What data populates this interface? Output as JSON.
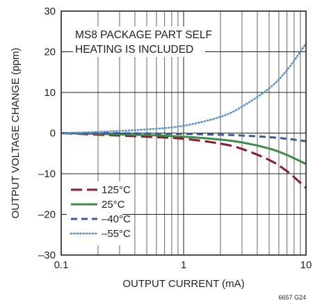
{
  "chart_data": {
    "type": "line",
    "xlabel": "OUTPUT CURRENT (mA)",
    "ylabel": "OUTPUT VOLTAGE CHANGE (ppm)",
    "x_scale": "log",
    "xlim": [
      0.1,
      10
    ],
    "ylim": [
      -30,
      30
    ],
    "x_ticks": [
      {
        "value": 0.1,
        "label": "0.1"
      },
      {
        "value": 1,
        "label": "1"
      },
      {
        "value": 10,
        "label": "10"
      }
    ],
    "y_ticks": [
      {
        "value": 30,
        "label": "30"
      },
      {
        "value": 20,
        "label": "20"
      },
      {
        "value": 10,
        "label": "10"
      },
      {
        "value": 0,
        "label": "0"
      },
      {
        "value": -10,
        "label": "–10"
      },
      {
        "value": -20,
        "label": "–20"
      },
      {
        "value": -30,
        "label": "–30"
      }
    ],
    "grid": true,
    "annotation": [
      "MS8 PACKAGE PART SELF",
      "HEATING IS INCLUDED"
    ],
    "figure_id": "6657 G24",
    "legend_position": "bottom-left",
    "series": [
      {
        "name": "125°C",
        "color": "#8b1a2e",
        "style": "long-dash",
        "x": [
          0.1,
          0.2,
          0.5,
          1,
          2,
          3,
          5,
          7,
          10
        ],
        "y": [
          0,
          -0.4,
          -0.9,
          -1.4,
          -2.6,
          -3.9,
          -6.6,
          -9.4,
          -13.5
        ]
      },
      {
        "name": "25°C",
        "color": "#3a8c46",
        "style": "solid",
        "x": [
          0.1,
          0.2,
          0.5,
          1,
          2,
          3,
          5,
          7,
          10
        ],
        "y": [
          0,
          -0.2,
          -0.5,
          -0.9,
          -1.6,
          -2.3,
          -3.8,
          -5.4,
          -7.6
        ]
      },
      {
        "name": "–40°C",
        "color": "#3d5a9e",
        "style": "dash",
        "x": [
          0.1,
          0.2,
          0.5,
          1,
          2,
          3,
          5,
          7,
          10
        ],
        "y": [
          0,
          0,
          -0.1,
          -0.2,
          -0.4,
          -0.6,
          -1.0,
          -1.4,
          -2.0
        ]
      },
      {
        "name": "–55°C",
        "color": "#5b8fcb",
        "style": "dotted",
        "x": [
          0.1,
          0.2,
          0.5,
          1,
          2,
          3,
          5,
          7,
          10
        ],
        "y": [
          0,
          0.3,
          0.9,
          1.8,
          4.0,
          6.5,
          11.0,
          15.5,
          22.0
        ]
      }
    ]
  }
}
